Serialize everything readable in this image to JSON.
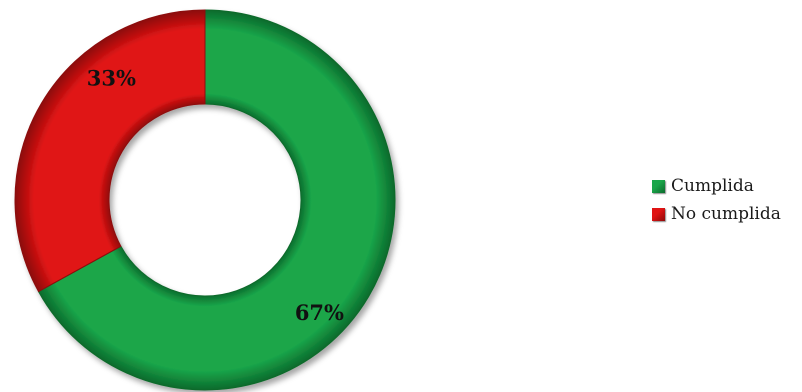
{
  "chart_data": {
    "type": "pie",
    "title": "",
    "donut": true,
    "categories": [
      "Cumplida",
      "No cumplida"
    ],
    "values": [
      67,
      33
    ],
    "data_labels": [
      "67%",
      "33%"
    ],
    "legend_position": "right",
    "colors": [
      "#1aa64a",
      "#e01414"
    ],
    "dark_colors": [
      "#0b6a2c",
      "#8c0a0a"
    ]
  }
}
